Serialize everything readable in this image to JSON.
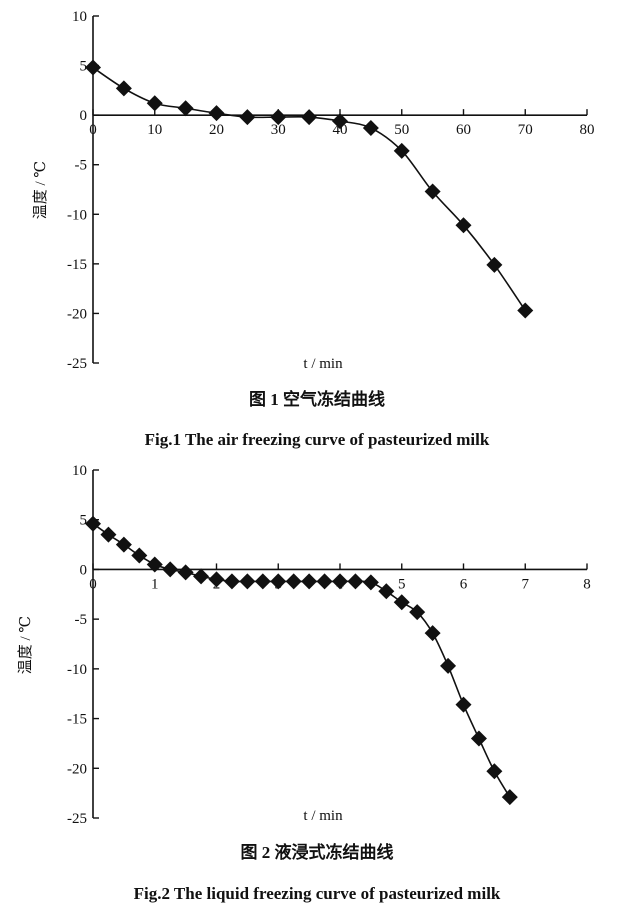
{
  "chart_data": [
    {
      "type": "line",
      "marker": "diamond",
      "x": [
        0,
        5,
        10,
        15,
        20,
        25,
        30,
        35,
        40,
        45,
        50,
        55,
        60,
        65,
        70
      ],
      "series": [
        {
          "values": [
            4.8,
            2.7,
            1.2,
            0.7,
            0.2,
            -0.2,
            -0.2,
            -0.2,
            -0.6,
            -1.3,
            -3.6,
            -7.7,
            -11.1,
            -15.1,
            -19.7
          ],
          "color": "#111111"
        }
      ],
      "xlabel": "t / min",
      "ylabel": "温度 / ℃",
      "xlim": [
        0,
        80
      ],
      "ylim": [
        -25,
        10
      ],
      "xticks": [
        0,
        10,
        20,
        30,
        40,
        50,
        60,
        70,
        80
      ],
      "yticks": [
        10,
        5,
        0,
        -5,
        -10,
        -15,
        -20,
        -25
      ],
      "grid": false,
      "caption_cn": "图 1  空气冻结曲线",
      "caption_en": "Fig.1 The air freezing curve of pasteurized milk"
    },
    {
      "type": "line",
      "marker": "diamond",
      "x": [
        0,
        0.25,
        0.5,
        0.75,
        1.0,
        1.25,
        1.5,
        1.75,
        2.0,
        2.25,
        2.5,
        2.75,
        3.0,
        3.25,
        3.5,
        3.75,
        4.0,
        4.25,
        4.5,
        4.75,
        5.0,
        5.25,
        5.5,
        5.75,
        6.0,
        6.25,
        6.5,
        6.75
      ],
      "series": [
        {
          "values": [
            4.6,
            3.5,
            2.5,
            1.4,
            0.5,
            0.0,
            -0.3,
            -0.7,
            -1.0,
            -1.2,
            -1.2,
            -1.2,
            -1.2,
            -1.2,
            -1.2,
            -1.2,
            -1.2,
            -1.2,
            -1.3,
            -2.2,
            -3.3,
            -4.3,
            -6.4,
            -9.7,
            -13.6,
            -17.0,
            -20.3,
            -22.9
          ],
          "color": "#111111"
        }
      ],
      "xlabel": "t / min",
      "ylabel": "温度 / ℃",
      "xlim": [
        0,
        8
      ],
      "ylim": [
        -25,
        10
      ],
      "xticks": [
        0,
        1,
        2,
        3,
        4,
        5,
        6,
        7,
        8
      ],
      "yticks": [
        10,
        5,
        0,
        -5,
        -10,
        -15,
        -20,
        -25
      ],
      "grid": false,
      "caption_cn": "图 2  液浸式冻结曲线",
      "caption_en": "Fig.2 The liquid freezing curve of pasteurized milk"
    }
  ]
}
